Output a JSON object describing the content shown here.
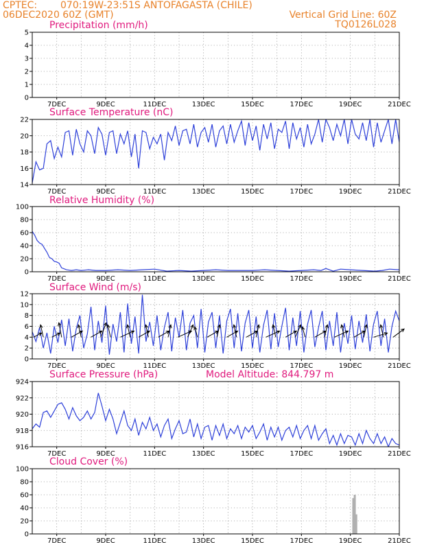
{
  "header": {
    "source": "CPTEC:",
    "location": "070:19W-23:51S  ANTOFAGASTA (CHILE)",
    "run": "06DEC2020 60Z (GMT)",
    "grid_note": "Vertical Grid Line: 60Z",
    "code": "TQ0126L028"
  },
  "x_axis": {
    "start_day": 6.0,
    "end_day": 21.0,
    "labeled_days": [
      7,
      9,
      11,
      13,
      15,
      17,
      19,
      21
    ],
    "tick_labels": [
      "7DEC",
      "9DEC",
      "11DEC",
      "13DEC",
      "15DEC",
      "17DEC",
      "19DEC",
      "21DEC"
    ],
    "vertical_grid": "daily"
  },
  "chart_data": [
    {
      "type": "line",
      "id": "precipitation",
      "title": "Precipitation (mm/h)",
      "ylim": [
        0,
        5
      ],
      "yticks": [
        0,
        1,
        2,
        3,
        4,
        5
      ],
      "x": [],
      "values": []
    },
    {
      "type": "line",
      "id": "temperature",
      "title": "Surface Temperature (nC)",
      "ylim": [
        14,
        22
      ],
      "yticks": [
        14,
        16,
        18,
        20,
        22
      ],
      "x": [
        6.0,
        6.15,
        6.3,
        6.45,
        6.6,
        6.75,
        6.9,
        7.05,
        7.2,
        7.35,
        7.5,
        7.65,
        7.8,
        7.95,
        8.1,
        8.25,
        8.4,
        8.55,
        8.7,
        8.85,
        9.0,
        9.15,
        9.3,
        9.45,
        9.6,
        9.75,
        9.9,
        10.05,
        10.2,
        10.35,
        10.5,
        10.65,
        10.8,
        10.95,
        11.1,
        11.25,
        11.4,
        11.55,
        11.7,
        11.85,
        12.0,
        12.15,
        12.3,
        12.45,
        12.6,
        12.75,
        12.9,
        13.05,
        13.2,
        13.35,
        13.5,
        13.65,
        13.8,
        13.95,
        14.1,
        14.25,
        14.4,
        14.55,
        14.7,
        14.85,
        15.0,
        15.15,
        15.3,
        15.45,
        15.6,
        15.75,
        15.9,
        16.05,
        16.2,
        16.35,
        16.5,
        16.65,
        16.8,
        16.95,
        17.1,
        17.25,
        17.4,
        17.55,
        17.7,
        17.85,
        18.0,
        18.15,
        18.3,
        18.45,
        18.6,
        18.75,
        18.9,
        19.05,
        19.2,
        19.35,
        19.5,
        19.65,
        19.8,
        19.95,
        20.1,
        20.25,
        20.4,
        20.55,
        20.7,
        20.85,
        21.0
      ],
      "values": [
        14.2,
        16.8,
        15.8,
        16.0,
        19.0,
        19.4,
        17.2,
        18.6,
        17.4,
        20.4,
        20.6,
        17.6,
        20.8,
        19.0,
        18.0,
        20.6,
        20.0,
        17.8,
        21.0,
        20.2,
        17.6,
        20.4,
        20.6,
        17.8,
        20.2,
        19.0,
        20.6,
        17.4,
        20.2,
        16.0,
        20.6,
        20.4,
        18.4,
        19.8,
        19.0,
        20.2,
        17.0,
        20.4,
        19.4,
        21.2,
        18.8,
        20.6,
        20.8,
        19.0,
        21.4,
        18.6,
        20.4,
        21.0,
        19.2,
        21.4,
        18.6,
        20.6,
        21.2,
        19.0,
        21.4,
        19.2,
        20.6,
        21.8,
        18.8,
        21.6,
        19.4,
        21.2,
        18.2,
        21.4,
        19.6,
        21.6,
        18.4,
        20.8,
        20.4,
        21.8,
        18.4,
        21.6,
        19.6,
        21.0,
        18.6,
        21.4,
        19.0,
        20.2,
        22.0,
        19.2,
        22.0,
        21.0,
        19.4,
        21.4,
        20.0,
        22.0,
        19.0,
        22.0,
        20.2,
        19.6,
        21.6,
        19.4,
        22.0,
        18.6,
        21.6,
        19.2,
        20.6,
        22.0,
        19.0,
        22.0,
        19.2
      ]
    },
    {
      "type": "line",
      "id": "humidity",
      "title": "Relative Humidity (%)",
      "ylim": [
        0,
        100
      ],
      "yticks": [
        0,
        20,
        40,
        60,
        80,
        100
      ],
      "x": [
        6.0,
        6.1,
        6.2,
        6.3,
        6.4,
        6.5,
        6.6,
        6.7,
        6.8,
        6.9,
        7.0,
        7.1,
        7.2,
        7.4,
        7.6,
        7.8,
        8.0,
        8.3,
        8.6,
        9.0,
        9.5,
        10.0,
        10.5,
        11.0,
        11.5,
        12.0,
        12.5,
        13.0,
        13.5,
        14.0,
        14.5,
        15.0,
        15.5,
        16.0,
        16.5,
        17.0,
        17.5,
        17.8,
        18.0,
        18.3,
        18.6,
        19.0,
        19.5,
        20.0,
        20.3,
        20.6,
        21.0
      ],
      "values": [
        62,
        56,
        48,
        44,
        42,
        36,
        30,
        22,
        20,
        16,
        15,
        13,
        6,
        3,
        2,
        3,
        2,
        3,
        2,
        2,
        3,
        2,
        3,
        4,
        1,
        2,
        1,
        2,
        3,
        2,
        2,
        2,
        3,
        2,
        1,
        2,
        3,
        2,
        5,
        1,
        4,
        3,
        2,
        1,
        2,
        4,
        3
      ]
    },
    {
      "type": "line",
      "id": "wind",
      "title": "Surface Wind (m/s)",
      "ylim": [
        0,
        12
      ],
      "yticks": [
        0,
        2,
        4,
        6,
        8,
        10,
        12
      ],
      "x": [
        6.0,
        6.15,
        6.3,
        6.45,
        6.6,
        6.75,
        6.9,
        7.05,
        7.2,
        7.35,
        7.5,
        7.65,
        7.8,
        7.95,
        8.1,
        8.25,
        8.4,
        8.55,
        8.7,
        8.85,
        9.0,
        9.15,
        9.3,
        9.45,
        9.6,
        9.75,
        9.9,
        10.05,
        10.2,
        10.35,
        10.5,
        10.65,
        10.8,
        10.95,
        11.1,
        11.25,
        11.4,
        11.55,
        11.7,
        11.85,
        12.0,
        12.15,
        12.3,
        12.45,
        12.6,
        12.75,
        12.9,
        13.05,
        13.2,
        13.35,
        13.5,
        13.65,
        13.8,
        13.95,
        14.1,
        14.25,
        14.4,
        14.55,
        14.7,
        14.85,
        15.0,
        15.15,
        15.3,
        15.45,
        15.6,
        15.75,
        15.9,
        16.05,
        16.2,
        16.35,
        16.5,
        16.65,
        16.8,
        16.95,
        17.1,
        17.25,
        17.4,
        17.55,
        17.7,
        17.85,
        18.0,
        18.15,
        18.3,
        18.45,
        18.6,
        18.75,
        18.9,
        19.05,
        19.2,
        19.35,
        19.5,
        19.65,
        19.8,
        19.95,
        20.1,
        20.25,
        20.4,
        20.55,
        20.7,
        20.85,
        21.0
      ],
      "values": [
        5.0,
        3.2,
        5.8,
        2.0,
        4.8,
        1.0,
        6.0,
        3.0,
        7.2,
        2.4,
        7.4,
        1.4,
        5.6,
        8.0,
        2.0,
        4.6,
        9.6,
        1.6,
        7.0,
        3.0,
        9.8,
        0.8,
        6.4,
        3.2,
        8.6,
        1.2,
        10.2,
        2.8,
        7.8,
        1.0,
        11.8,
        3.2,
        6.8,
        2.4,
        8.0,
        1.6,
        5.8,
        8.6,
        1.4,
        7.6,
        4.0,
        9.0,
        1.6,
        6.6,
        8.0,
        2.0,
        9.2,
        1.2,
        6.8,
        8.6,
        2.0,
        8.0,
        1.0,
        7.0,
        9.2,
        2.0,
        8.4,
        1.4,
        6.6,
        9.0,
        2.0,
        7.8,
        1.2,
        6.2,
        9.0,
        1.8,
        8.4,
        2.2,
        6.0,
        9.4,
        1.6,
        7.6,
        2.4,
        8.8,
        1.2,
        6.4,
        9.0,
        2.2,
        5.8,
        8.8,
        1.6,
        7.0,
        2.4,
        8.6,
        1.2,
        6.6,
        2.8,
        8.0,
        1.8,
        7.0,
        3.0,
        8.2,
        1.4,
        6.4,
        8.8,
        2.4,
        7.4,
        1.2,
        6.0,
        8.8,
        7.0
      ],
      "vectors": {
        "days": [
          6.05,
          6.45,
          6.8,
          7.2,
          7.6,
          8.0,
          8.4,
          8.8,
          9.2,
          9.6,
          10.0,
          10.35,
          10.75,
          11.15,
          11.55,
          11.95,
          12.35,
          12.75,
          13.15,
          13.55,
          13.95,
          14.35,
          14.75,
          15.15,
          15.55,
          15.95,
          16.35,
          16.75,
          17.15,
          17.55,
          17.95,
          18.35,
          18.75,
          19.15,
          19.55,
          19.95,
          20.35,
          20.75
        ],
        "u": [
          3,
          -1,
          3,
          -1,
          4,
          -1,
          4,
          2,
          -1,
          5,
          -1,
          4,
          -1,
          4,
          1,
          5,
          2,
          -1,
          4,
          1,
          4,
          -1,
          4,
          1,
          5,
          -1,
          4,
          2,
          -1,
          4,
          1,
          5,
          -1,
          4,
          1,
          5,
          -1,
          4
        ],
        "v": [
          2,
          6,
          2,
          7,
          3,
          6,
          3,
          7,
          6,
          3,
          6,
          3,
          6,
          3,
          6,
          3,
          6,
          5,
          3,
          6,
          3,
          6,
          3,
          6,
          3,
          6,
          3,
          6,
          5,
          3,
          6,
          3,
          6,
          3,
          6,
          2,
          6,
          4
        ]
      }
    },
    {
      "type": "line",
      "id": "pressure",
      "title": "Surface Pressure (hPa)",
      "annotation": "Model Altitude: 844.797 m",
      "ylim": [
        916,
        924
      ],
      "yticks": [
        916,
        918,
        920,
        922,
        924
      ],
      "x": [
        6.0,
        6.15,
        6.3,
        6.45,
        6.6,
        6.75,
        6.9,
        7.05,
        7.2,
        7.35,
        7.5,
        7.65,
        7.8,
        7.95,
        8.1,
        8.25,
        8.4,
        8.55,
        8.7,
        8.85,
        9.0,
        9.15,
        9.3,
        9.45,
        9.6,
        9.75,
        9.9,
        10.05,
        10.2,
        10.35,
        10.5,
        10.65,
        10.8,
        10.95,
        11.1,
        11.25,
        11.4,
        11.55,
        11.7,
        11.85,
        12.0,
        12.15,
        12.3,
        12.45,
        12.6,
        12.75,
        12.9,
        13.05,
        13.2,
        13.35,
        13.5,
        13.65,
        13.8,
        13.95,
        14.1,
        14.25,
        14.4,
        14.55,
        14.7,
        14.85,
        15.0,
        15.15,
        15.3,
        15.45,
        15.6,
        15.75,
        15.9,
        16.05,
        16.2,
        16.35,
        16.5,
        16.65,
        16.8,
        16.95,
        17.1,
        17.25,
        17.4,
        17.55,
        17.7,
        17.85,
        18.0,
        18.15,
        18.3,
        18.45,
        18.6,
        18.75,
        18.9,
        19.05,
        19.2,
        19.35,
        19.5,
        19.65,
        19.8,
        19.95,
        20.1,
        20.25,
        20.4,
        20.55,
        20.7,
        20.85,
        21.0
      ],
      "values": [
        918.2,
        918.8,
        918.4,
        920.2,
        920.4,
        919.6,
        920.4,
        921.2,
        921.4,
        920.6,
        919.4,
        920.8,
        919.8,
        919.2,
        919.6,
        920.4,
        919.4,
        920.2,
        922.6,
        921.0,
        919.2,
        920.6,
        919.4,
        917.6,
        919.0,
        920.4,
        918.6,
        918.0,
        919.4,
        917.4,
        919.0,
        918.2,
        919.6,
        918.0,
        918.8,
        917.2,
        918.6,
        919.4,
        917.0,
        918.2,
        919.2,
        917.6,
        917.8,
        919.4,
        917.2,
        918.8,
        917.0,
        918.4,
        918.6,
        916.8,
        918.6,
        917.4,
        918.8,
        917.0,
        918.2,
        917.6,
        918.6,
        917.0,
        918.4,
        917.8,
        918.6,
        917.0,
        917.8,
        918.8,
        916.8,
        918.4,
        917.2,
        918.4,
        916.8,
        918.0,
        918.4,
        917.2,
        918.6,
        917.0,
        918.0,
        918.6,
        917.0,
        918.6,
        916.8,
        917.6,
        918.2,
        916.4,
        917.4,
        916.2,
        917.6,
        916.4,
        917.4,
        917.2,
        916.2,
        917.6,
        916.4,
        918.0,
        917.0,
        916.4,
        917.6,
        916.4,
        917.2,
        916.0,
        917.0,
        916.4,
        916.2
      ]
    },
    {
      "type": "bar",
      "id": "cloud",
      "title": "Cloud Cover (%)",
      "ylim": [
        0,
        100
      ],
      "yticks": [
        0,
        20,
        40,
        60,
        80,
        100
      ],
      "x": [
        19.12,
        19.18,
        19.24
      ],
      "values": [
        55,
        60,
        30
      ]
    }
  ]
}
